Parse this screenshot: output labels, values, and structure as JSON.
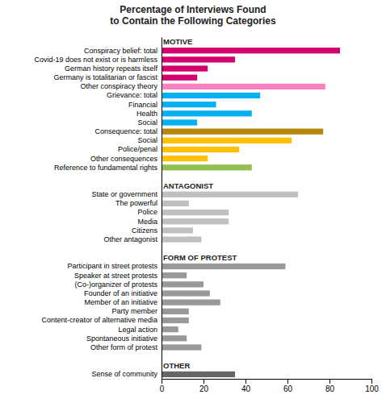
{
  "chart_data": {
    "type": "bar",
    "orientation": "horizontal",
    "title": "Percentage of Interviews Found\nto Contain the Following Categories",
    "categories": [
      "MOTIVE",
      "Conspiracy belief: total",
      "Covid-19 does not exist or is harmless",
      "German history repeats itself",
      "Germany is totalitarian or fascist",
      "Other conspiracy theory",
      "Grievance: total",
      "Financial",
      "Health",
      "Social",
      "Consequence: total",
      "Social",
      "Police/penal",
      "Other consequences",
      "Reference to fundamental rights",
      null,
      "ANTAGONIST",
      "State or government",
      "The powerful",
      "Police",
      "Media",
      "Citizens",
      "Other antagonist",
      null,
      "FORM OF PROTEST",
      "Participant in street protests",
      "Speaker at street protests",
      "(Co-)organizer of protests",
      "Founder of an initiative",
      "Member of an initiative",
      "Party member",
      "Content-creator of alternative media",
      "Legal action",
      "Spontaneous initiative",
      "Other form of protest",
      null,
      "OTHER",
      "Sense of community"
    ],
    "values": [
      null,
      85,
      35,
      22,
      17,
      78,
      47,
      26,
      43,
      17,
      77,
      62,
      37,
      22,
      43,
      null,
      null,
      65,
      13,
      32,
      32,
      15,
      19,
      null,
      null,
      59,
      12,
      20,
      23,
      28,
      13,
      13,
      8,
      12,
      19,
      null,
      null,
      35
    ],
    "colors": [
      null,
      "#d4006e",
      "#d4006e",
      "#d4006e",
      "#d4006e",
      "#ff80c0",
      "#00b0f0",
      "#00b0f0",
      "#00b0f0",
      "#00b0f0",
      "#b8860b",
      "#ffc000",
      "#ffc000",
      "#ffc000",
      "#92c050",
      null,
      null,
      "#c0c0c0",
      "#c0c0c0",
      "#c0c0c0",
      "#c0c0c0",
      "#c0c0c0",
      "#c0c0c0",
      null,
      null,
      "#999999",
      "#999999",
      "#999999",
      "#999999",
      "#999999",
      "#999999",
      "#999999",
      "#999999",
      "#999999",
      "#999999",
      null,
      null,
      "#666666"
    ],
    "xlim": [
      0,
      100
    ],
    "xticks": [
      0,
      20,
      40,
      60,
      80,
      100
    ],
    "grid": false
  }
}
